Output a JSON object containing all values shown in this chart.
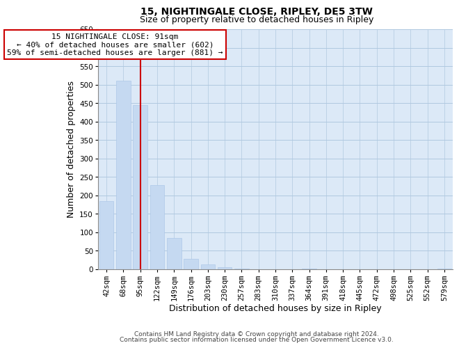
{
  "title": "15, NIGHTINGALE CLOSE, RIPLEY, DE5 3TW",
  "subtitle": "Size of property relative to detached houses in Ripley",
  "bar_labels": [
    "42sqm",
    "68sqm",
    "95sqm",
    "122sqm",
    "149sqm",
    "176sqm",
    "203sqm",
    "230sqm",
    "257sqm",
    "283sqm",
    "310sqm",
    "337sqm",
    "364sqm",
    "391sqm",
    "418sqm",
    "445sqm",
    "472sqm",
    "498sqm",
    "525sqm",
    "552sqm",
    "579sqm"
  ],
  "bar_values": [
    185,
    510,
    445,
    228,
    85,
    29,
    13,
    5,
    2,
    0,
    0,
    0,
    1,
    0,
    0,
    0,
    0,
    0,
    0,
    0,
    1
  ],
  "bar_color": "#c5d9f1",
  "bar_edge_color": "#aec8e8",
  "xlabel": "Distribution of detached houses by size in Ripley",
  "ylabel": "Number of detached properties",
  "ylim": [
    0,
    650
  ],
  "yticks": [
    0,
    50,
    100,
    150,
    200,
    250,
    300,
    350,
    400,
    450,
    500,
    550,
    600,
    650
  ],
  "vline_x": 2,
  "vline_color": "#cc0000",
  "annotation_title": "15 NIGHTINGALE CLOSE: 91sqm",
  "annotation_line1": "← 40% of detached houses are smaller (602)",
  "annotation_line2": "59% of semi-detached houses are larger (881) →",
  "footer1": "Contains HM Land Registry data © Crown copyright and database right 2024.",
  "footer2": "Contains public sector information licensed under the Open Government Licence v3.0.",
  "background_color": "#ffffff",
  "plot_bg_color": "#dce9f7",
  "grid_color": "#b0c8e0",
  "title_fontsize": 10,
  "subtitle_fontsize": 9,
  "axis_label_fontsize": 9,
  "tick_fontsize": 7.5,
  "footer_fontsize": 6.5,
  "annotation_fontsize": 8
}
